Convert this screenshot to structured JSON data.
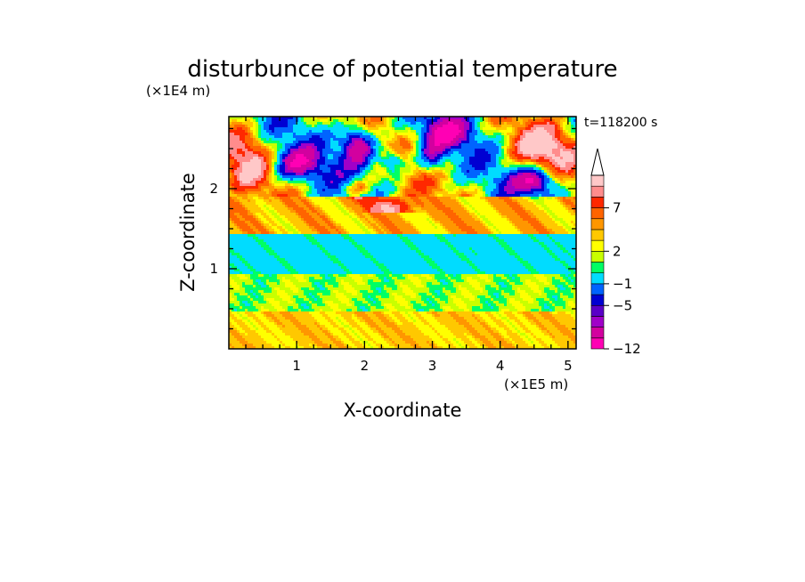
{
  "chart_data": {
    "type": "heatmap",
    "title": "disturbunce of potential temperature",
    "xlabel": "X-coordinate",
    "ylabel": "Z-coordinate",
    "x_unit": "(×1E5 m)",
    "y_unit": "(×1E4 m)",
    "time_label": "t=118200 s",
    "xlim": [
      0,
      5.12
    ],
    "ylim": [
      0,
      2.9
    ],
    "x_ticks": [
      "1",
      "2",
      "3",
      "4",
      "5"
    ],
    "y_ticks": [
      "1",
      "2"
    ],
    "colorbar": {
      "labels": [
        "7",
        "2",
        "−1",
        "−5",
        "−12"
      ],
      "colors": [
        "#ff00b4",
        "#d2009f",
        "#a000c8",
        "#5a00c8",
        "#0000d2",
        "#0064ff",
        "#00dcff",
        "#00ff64",
        "#c8ff00",
        "#ffff00",
        "#ffc800",
        "#ff9600",
        "#ff6400",
        "#ff2800",
        "#ff8c8c",
        "#ffc8c8"
      ]
    },
    "bands": [
      {
        "z": [
          0.0,
          0.45
        ],
        "description": "yellow / light orange, small positive values"
      },
      {
        "z": [
          0.45,
          0.9
        ],
        "description": "green / yellow-green, near zero"
      },
      {
        "z": [
          0.9,
          1.45
        ],
        "description": "cyan, about −1"
      },
      {
        "z": [
          1.45,
          1.9
        ],
        "description": "yellow to orange, positive"
      },
      {
        "z": [
          1.9,
          2.9
        ],
        "description": "mixed strong positive (orange / red) and negative (blue / purple) cells"
      }
    ]
  }
}
